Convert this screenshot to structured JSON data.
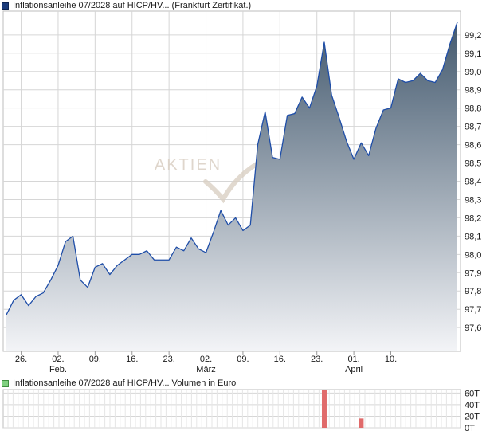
{
  "legend": {
    "price": "Inflationsanleihe 07/2028 auf HICP/HV... (Frankfurt Zertifikat.)",
    "volume": "Inflationsanleihe 07/2028 auf HICP/HV... Volumen in Euro"
  },
  "watermark": "AKTIEN",
  "colors": {
    "line": "#1f4ea8",
    "area_top": "#43596e",
    "area_bottom": "#f3f4f7",
    "volume_bar": "#e06a6a",
    "grid": "#d6d6d6"
  },
  "chart_data": [
    {
      "type": "area",
      "title": "",
      "xlabel": "",
      "ylabel": "",
      "ylim": [
        97.47,
        99.33
      ],
      "grid": true,
      "y_axis_position": "right",
      "y_ticks": [
        "97,6",
        "97,7",
        "97,8",
        "97,9",
        "98,0",
        "98,1",
        "98,2",
        "98,3",
        "98,4",
        "98,5",
        "98,6",
        "98,7",
        "98,8",
        "98,9",
        "99,0",
        "99,1",
        "99,2"
      ],
      "x_ticks": [
        {
          "day": "26.",
          "month": ""
        },
        {
          "day": "02.",
          "month": "Feb."
        },
        {
          "day": "09.",
          "month": ""
        },
        {
          "day": "16.",
          "month": ""
        },
        {
          "day": "23.",
          "month": ""
        },
        {
          "day": "02.",
          "month": "März"
        },
        {
          "day": "09.",
          "month": ""
        },
        {
          "day": "16.",
          "month": ""
        },
        {
          "day": "23.",
          "month": ""
        },
        {
          "day": "01.",
          "month": "April"
        },
        {
          "day": "10.",
          "month": ""
        }
      ],
      "series": [
        {
          "values": [
            97.67,
            97.75,
            97.78,
            97.72,
            97.77,
            97.79,
            97.86,
            97.94,
            98.07,
            98.1,
            97.86,
            97.82,
            97.93,
            97.95,
            97.89,
            97.94,
            97.97,
            98.0,
            98.0,
            98.02,
            97.97,
            97.97,
            97.97,
            98.04,
            98.02,
            98.09,
            98.03,
            98.01,
            98.12,
            98.24,
            98.16,
            98.2,
            98.13,
            98.16,
            98.6,
            98.78,
            98.53,
            98.52,
            98.76,
            98.77,
            98.86,
            98.8,
            98.92,
            99.16,
            98.87,
            98.75,
            98.62,
            98.52,
            98.61,
            98.54,
            98.69,
            98.79,
            98.8,
            98.96,
            98.94,
            98.95,
            98.99,
            98.95,
            98.94,
            99.01,
            99.15,
            99.27
          ]
        }
      ]
    },
    {
      "type": "bar",
      "title": "",
      "xlabel": "",
      "ylabel": "",
      "ylim": [
        0,
        66
      ],
      "grid": true,
      "y_axis_position": "right",
      "y_ticks": [
        "60T",
        "40T",
        "20T",
        "0T"
      ],
      "y_tick_values": [
        60,
        40,
        20,
        0
      ],
      "bars": [
        {
          "x_index": 43,
          "value": 66
        },
        {
          "x_index": 48,
          "value": 16
        }
      ]
    }
  ]
}
